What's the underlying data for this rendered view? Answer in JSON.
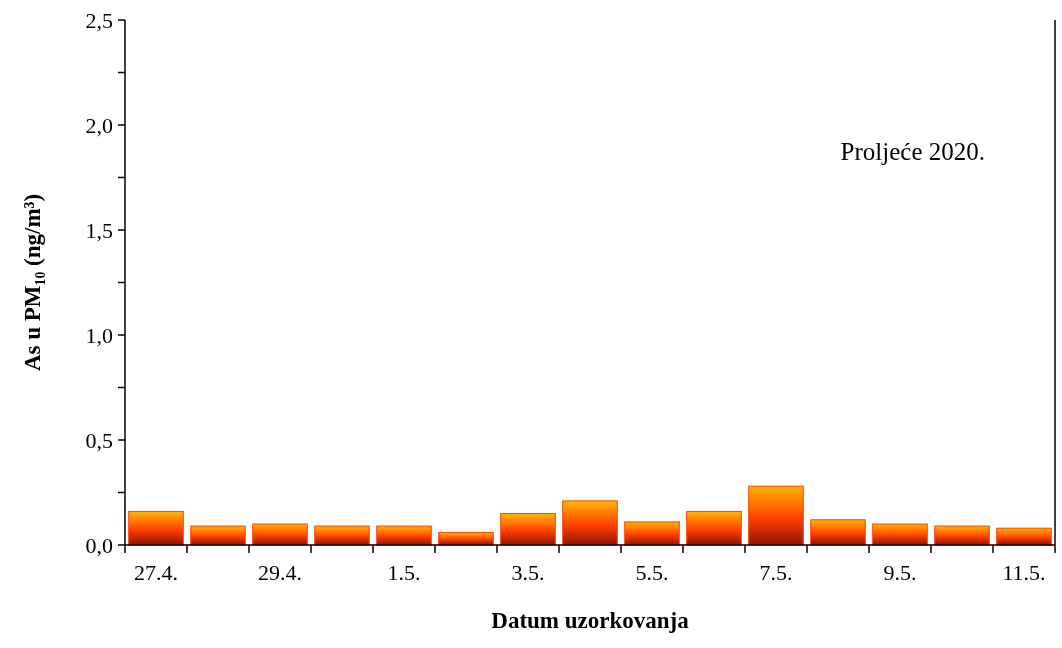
{
  "chart_data": {
    "type": "bar",
    "annotations": [
      "Proljeće 2020."
    ],
    "xlabel": "Datum uzorkovanja",
    "ylabel": "As u PM₁₀ (ng/m³)",
    "categories": [
      "27.4.",
      null,
      "29.4.",
      null,
      "1.5.",
      null,
      "3.5.",
      null,
      "5.5.",
      null,
      "7.5.",
      null,
      "9.5.",
      null,
      "11.5."
    ],
    "values": [
      0.16,
      0.09,
      0.1,
      0.09,
      0.09,
      0.06,
      0.15,
      0.21,
      0.11,
      0.16,
      0.28,
      0.12,
      0.1,
      0.09,
      0.08
    ],
    "color": "#ff4000",
    "ylim": [
      0,
      2.5
    ],
    "yticks": [
      {
        "value": 0,
        "label": "0,0"
      },
      {
        "value": 0.25,
        "label": null
      },
      {
        "value": 0.5,
        "label": "0,5"
      },
      {
        "value": 0.75,
        "label": null
      },
      {
        "value": 1,
        "label": "1,0"
      },
      {
        "value": 1.25,
        "label": null
      },
      {
        "value": 1.5,
        "label": "1,5"
      },
      {
        "value": 1.75,
        "label": null
      },
      {
        "value": 2,
        "label": "2,0"
      },
      {
        "value": 2.25,
        "label": null
      },
      {
        "value": 2.5,
        "label": "2,5"
      }
    ]
  }
}
